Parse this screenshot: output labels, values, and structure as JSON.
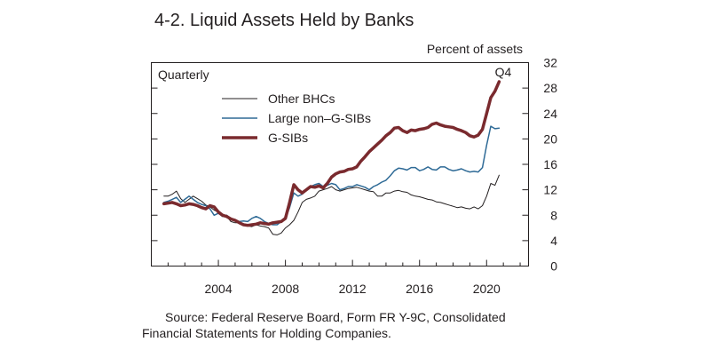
{
  "title": "4-2. Liquid Assets Held by Banks",
  "source_line1": "Source: Federal Reserve Board, Form FR Y-9C, Consolidated",
  "source_line2": "Financial Statements for Holding Companies.",
  "chart_data": {
    "type": "line",
    "frequency_label": "Quarterly",
    "ylabel": "Percent of assets",
    "xlim": [
      2000.0,
      2022.5
    ],
    "ylim": [
      0,
      32
    ],
    "y_ticks": [
      0,
      4,
      8,
      12,
      16,
      20,
      24,
      28,
      32
    ],
    "x_ticks": [
      2004,
      2008,
      2012,
      2016,
      2020
    ],
    "annotation": "Q4",
    "legend_position": "top-left",
    "grid": false,
    "colors": {
      "Other BHCs": "#231f20",
      "Large non–G-SIBs": "#2e6a96",
      "G-SIBs": "#7a2a2e"
    },
    "series": [
      {
        "name": "Other BHCs",
        "points": [
          [
            2000.75,
            11.0
          ],
          [
            2001.0,
            11.0
          ],
          [
            2001.25,
            11.3
          ],
          [
            2001.5,
            11.8
          ],
          [
            2001.75,
            10.6
          ],
          [
            2002.0,
            10.0
          ],
          [
            2002.25,
            10.5
          ],
          [
            2002.5,
            11.0
          ],
          [
            2002.75,
            10.6
          ],
          [
            2003.0,
            10.2
          ],
          [
            2003.25,
            9.6
          ],
          [
            2003.5,
            9.3
          ],
          [
            2003.75,
            8.8
          ],
          [
            2004.0,
            8.5
          ],
          [
            2004.25,
            8.0
          ],
          [
            2004.5,
            7.8
          ],
          [
            2004.75,
            7.0
          ],
          [
            2005.0,
            6.8
          ],
          [
            2005.25,
            6.8
          ],
          [
            2005.5,
            6.5
          ],
          [
            2005.75,
            6.3
          ],
          [
            2006.0,
            6.2
          ],
          [
            2006.25,
            6.5
          ],
          [
            2006.5,
            6.3
          ],
          [
            2006.75,
            6.2
          ],
          [
            2007.0,
            6.0
          ],
          [
            2007.25,
            5.0
          ],
          [
            2007.5,
            4.9
          ],
          [
            2007.75,
            5.2
          ],
          [
            2008.0,
            6.0
          ],
          [
            2008.25,
            6.5
          ],
          [
            2008.5,
            7.2
          ],
          [
            2008.75,
            8.5
          ],
          [
            2009.0,
            10.0
          ],
          [
            2009.25,
            10.5
          ],
          [
            2009.5,
            10.7
          ],
          [
            2009.75,
            11.0
          ],
          [
            2010.0,
            11.8
          ],
          [
            2010.25,
            12.0
          ],
          [
            2010.5,
            12.2
          ],
          [
            2010.75,
            12.5
          ],
          [
            2011.0,
            12.0
          ],
          [
            2011.25,
            11.8
          ],
          [
            2011.5,
            12.0
          ],
          [
            2011.75,
            12.2
          ],
          [
            2012.0,
            12.3
          ],
          [
            2012.25,
            12.4
          ],
          [
            2012.5,
            12.2
          ],
          [
            2012.75,
            12.0
          ],
          [
            2013.0,
            11.8
          ],
          [
            2013.25,
            11.7
          ],
          [
            2013.5,
            11.0
          ],
          [
            2013.75,
            11.0
          ],
          [
            2014.0,
            11.5
          ],
          [
            2014.25,
            11.5
          ],
          [
            2014.5,
            11.8
          ],
          [
            2014.75,
            11.9
          ],
          [
            2015.0,
            11.7
          ],
          [
            2015.25,
            11.6
          ],
          [
            2015.5,
            11.2
          ],
          [
            2015.75,
            11.0
          ],
          [
            2016.0,
            10.9
          ],
          [
            2016.25,
            10.7
          ],
          [
            2016.5,
            10.5
          ],
          [
            2016.75,
            10.4
          ],
          [
            2017.0,
            10.1
          ],
          [
            2017.25,
            10.0
          ],
          [
            2017.5,
            9.8
          ],
          [
            2017.75,
            9.6
          ],
          [
            2018.0,
            9.4
          ],
          [
            2018.25,
            9.2
          ],
          [
            2018.5,
            9.3
          ],
          [
            2018.75,
            9.1
          ],
          [
            2019.0,
            9.0
          ],
          [
            2019.25,
            9.3
          ],
          [
            2019.5,
            9.0
          ],
          [
            2019.75,
            9.5
          ],
          [
            2020.0,
            11.0
          ],
          [
            2020.25,
            13.0
          ],
          [
            2020.5,
            12.7
          ],
          [
            2020.75,
            14.3
          ]
        ]
      },
      {
        "name": "Large non–G-SIBs",
        "points": [
          [
            2000.75,
            10.0
          ],
          [
            2001.0,
            10.2
          ],
          [
            2001.25,
            10.5
          ],
          [
            2001.5,
            10.8
          ],
          [
            2001.75,
            10.0
          ],
          [
            2002.0,
            10.5
          ],
          [
            2002.25,
            11.0
          ],
          [
            2002.5,
            10.5
          ],
          [
            2002.75,
            10.0
          ],
          [
            2003.0,
            9.7
          ],
          [
            2003.25,
            9.5
          ],
          [
            2003.5,
            9.0
          ],
          [
            2003.75,
            8.0
          ],
          [
            2004.0,
            8.3
          ],
          [
            2004.25,
            7.8
          ],
          [
            2004.5,
            8.0
          ],
          [
            2004.75,
            7.4
          ],
          [
            2005.0,
            7.3
          ],
          [
            2005.25,
            7.0
          ],
          [
            2005.5,
            7.1
          ],
          [
            2005.75,
            7.0
          ],
          [
            2006.0,
            7.5
          ],
          [
            2006.25,
            7.8
          ],
          [
            2006.5,
            7.5
          ],
          [
            2006.75,
            7.0
          ],
          [
            2007.0,
            6.7
          ],
          [
            2007.25,
            6.5
          ],
          [
            2007.5,
            6.5
          ],
          [
            2007.75,
            7.0
          ],
          [
            2008.0,
            7.5
          ],
          [
            2008.25,
            9.2
          ],
          [
            2008.5,
            11.5
          ],
          [
            2008.75,
            11.0
          ],
          [
            2009.0,
            11.3
          ],
          [
            2009.25,
            12.0
          ],
          [
            2009.5,
            12.5
          ],
          [
            2009.75,
            12.8
          ],
          [
            2010.0,
            13.0
          ],
          [
            2010.25,
            12.5
          ],
          [
            2010.5,
            12.7
          ],
          [
            2010.75,
            13.0
          ],
          [
            2011.0,
            12.8
          ],
          [
            2011.25,
            12.0
          ],
          [
            2011.5,
            12.2
          ],
          [
            2011.75,
            12.5
          ],
          [
            2012.0,
            12.5
          ],
          [
            2012.25,
            12.8
          ],
          [
            2012.5,
            12.6
          ],
          [
            2012.75,
            12.4
          ],
          [
            2013.0,
            12.0
          ],
          [
            2013.25,
            12.5
          ],
          [
            2013.5,
            12.8
          ],
          [
            2013.75,
            13.2
          ],
          [
            2014.0,
            13.5
          ],
          [
            2014.25,
            14.2
          ],
          [
            2014.5,
            15.0
          ],
          [
            2014.75,
            15.4
          ],
          [
            2015.0,
            15.3
          ],
          [
            2015.25,
            15.1
          ],
          [
            2015.5,
            15.5
          ],
          [
            2015.75,
            15.5
          ],
          [
            2016.0,
            15.0
          ],
          [
            2016.25,
            15.2
          ],
          [
            2016.5,
            15.6
          ],
          [
            2016.75,
            15.2
          ],
          [
            2017.0,
            15.1
          ],
          [
            2017.25,
            15.6
          ],
          [
            2017.5,
            15.6
          ],
          [
            2017.75,
            15.2
          ],
          [
            2018.0,
            15.0
          ],
          [
            2018.25,
            15.1
          ],
          [
            2018.5,
            15.3
          ],
          [
            2018.75,
            15.0
          ],
          [
            2019.0,
            14.8
          ],
          [
            2019.25,
            14.9
          ],
          [
            2019.5,
            14.8
          ],
          [
            2019.75,
            15.5
          ],
          [
            2020.0,
            19.0
          ],
          [
            2020.25,
            22.0
          ],
          [
            2020.5,
            21.6
          ],
          [
            2020.75,
            21.7
          ]
        ]
      },
      {
        "name": "G-SIBs",
        "points": [
          [
            2000.75,
            9.8
          ],
          [
            2001.0,
            9.9
          ],
          [
            2001.25,
            10.0
          ],
          [
            2001.5,
            9.8
          ],
          [
            2001.75,
            9.5
          ],
          [
            2002.0,
            9.6
          ],
          [
            2002.25,
            9.8
          ],
          [
            2002.5,
            9.7
          ],
          [
            2002.75,
            9.5
          ],
          [
            2003.0,
            9.2
          ],
          [
            2003.25,
            9.0
          ],
          [
            2003.5,
            9.5
          ],
          [
            2003.75,
            9.3
          ],
          [
            2004.0,
            8.5
          ],
          [
            2004.25,
            8.0
          ],
          [
            2004.5,
            7.8
          ],
          [
            2004.75,
            7.4
          ],
          [
            2005.0,
            7.2
          ],
          [
            2005.25,
            6.8
          ],
          [
            2005.5,
            6.5
          ],
          [
            2005.75,
            6.4
          ],
          [
            2006.0,
            6.5
          ],
          [
            2006.25,
            6.6
          ],
          [
            2006.5,
            6.8
          ],
          [
            2006.75,
            6.7
          ],
          [
            2007.0,
            6.6
          ],
          [
            2007.25,
            6.8
          ],
          [
            2007.5,
            6.9
          ],
          [
            2007.75,
            7.0
          ],
          [
            2008.0,
            7.5
          ],
          [
            2008.25,
            10.0
          ],
          [
            2008.5,
            12.8
          ],
          [
            2008.75,
            12.0
          ],
          [
            2009.0,
            11.5
          ],
          [
            2009.25,
            12.0
          ],
          [
            2009.5,
            12.5
          ],
          [
            2009.75,
            12.4
          ],
          [
            2010.0,
            12.6
          ],
          [
            2010.25,
            12.3
          ],
          [
            2010.5,
            13.0
          ],
          [
            2010.75,
            14.0
          ],
          [
            2011.0,
            14.5
          ],
          [
            2011.25,
            14.8
          ],
          [
            2011.5,
            14.9
          ],
          [
            2011.75,
            15.2
          ],
          [
            2012.0,
            15.3
          ],
          [
            2012.25,
            15.6
          ],
          [
            2012.5,
            16.5
          ],
          [
            2012.75,
            17.2
          ],
          [
            2013.0,
            18.0
          ],
          [
            2013.25,
            18.6
          ],
          [
            2013.5,
            19.2
          ],
          [
            2013.75,
            19.8
          ],
          [
            2014.0,
            20.5
          ],
          [
            2014.25,
            21.0
          ],
          [
            2014.5,
            21.7
          ],
          [
            2014.75,
            21.8
          ],
          [
            2015.0,
            21.3
          ],
          [
            2015.25,
            21.0
          ],
          [
            2015.5,
            21.4
          ],
          [
            2015.75,
            21.3
          ],
          [
            2016.0,
            21.5
          ],
          [
            2016.25,
            21.6
          ],
          [
            2016.5,
            21.8
          ],
          [
            2016.75,
            22.3
          ],
          [
            2017.0,
            22.5
          ],
          [
            2017.25,
            22.2
          ],
          [
            2017.5,
            22.0
          ],
          [
            2017.75,
            21.9
          ],
          [
            2018.0,
            21.8
          ],
          [
            2018.25,
            21.5
          ],
          [
            2018.5,
            21.3
          ],
          [
            2018.75,
            21.0
          ],
          [
            2019.0,
            20.5
          ],
          [
            2019.25,
            20.3
          ],
          [
            2019.5,
            20.6
          ],
          [
            2019.75,
            21.5
          ],
          [
            2020.0,
            24.0
          ],
          [
            2020.25,
            26.5
          ],
          [
            2020.5,
            27.5
          ],
          [
            2020.75,
            29.0
          ]
        ]
      }
    ]
  }
}
